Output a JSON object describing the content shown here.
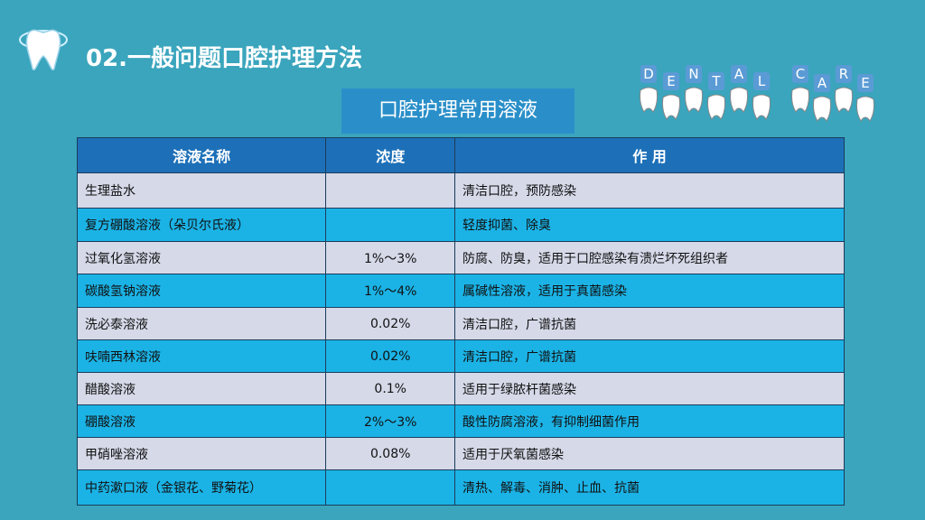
{
  "header": {
    "title": "02.一般问题口腔护理方法",
    "subtitle": "口腔护理常用溶液"
  },
  "decoration": {
    "word1": [
      "D",
      "E",
      "N",
      "T",
      "A",
      "L"
    ],
    "word2": [
      "C",
      "A",
      "R",
      "E"
    ]
  },
  "table": {
    "columns": [
      "溶液名称",
      "浓度",
      "作  用"
    ],
    "rows": [
      [
        "生理盐水",
        null,
        "清洁口腔，预防感染"
      ],
      [
        "复方硼酸溶液（朵贝尔氏液）",
        null,
        "轻度抑菌、除臭"
      ],
      [
        "过氧化氢溶液",
        "1%～3%",
        "防腐、防臭，适用于口腔感染有溃烂坏死组织者"
      ],
      [
        "碳酸氢钠溶液",
        "1%～4%",
        "属碱性溶液，适用于真菌感染"
      ],
      [
        "洗必泰溶液",
        "0.02%",
        "清洁口腔，广谱抗菌"
      ],
      [
        "呋喃西林溶液",
        "0.02%",
        "清洁口腔，广谱抗菌"
      ],
      [
        "醋酸溶液",
        "0.1%",
        "适用于绿脓杆菌感染"
      ],
      [
        "硼酸溶液",
        "2%～3%",
        "酸性防腐溶液，有抑制细菌作用"
      ],
      [
        "甲硝唑溶液",
        "0.08%",
        "适用于厌氧菌感染"
      ],
      [
        "中药漱口液（金银花、野菊花）",
        null,
        "清热、解毒、消肿、止血、抗菌"
      ]
    ]
  }
}
